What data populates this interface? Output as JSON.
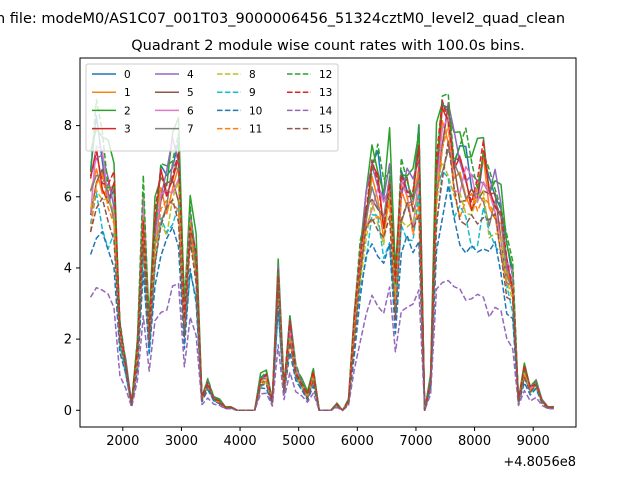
{
  "page": {
    "suptitle": "n file: modeM0/AS1C07_001T03_9000006456_51324cztM0_level2_quad_clean"
  },
  "chart_data": {
    "type": "line",
    "title": "Quadrant 2 module wise count rates with 100.0s bins.",
    "xlabel": "",
    "ylabel": "",
    "x_offset_label": "+4.8056e8",
    "xlim": [
      1270,
      9730
    ],
    "ylim": [
      -0.47,
      9.9
    ],
    "xticks": [
      2000,
      3000,
      4000,
      5000,
      6000,
      7000,
      8000,
      9000
    ],
    "yticks": [
      0,
      2,
      4,
      6,
      8
    ],
    "grid": false,
    "legend": {
      "placement": "top-left",
      "columns": 4
    },
    "x": [
      1450,
      1550,
      1650,
      1750,
      1850,
      1950,
      2050,
      2150,
      2250,
      2350,
      2450,
      2550,
      2650,
      2750,
      2850,
      2950,
      3050,
      3150,
      3250,
      3350,
      3450,
      3550,
      3650,
      3750,
      3850,
      3950,
      4050,
      4150,
      4250,
      4350,
      4450,
      4550,
      4650,
      4750,
      4850,
      4950,
      5050,
      5150,
      5250,
      5350,
      5450,
      5550,
      5650,
      5750,
      5850,
      5950,
      6050,
      6150,
      6250,
      6350,
      6450,
      6550,
      6650,
      6750,
      6850,
      6950,
      7050,
      7150,
      7250,
      7350,
      7450,
      7550,
      7650,
      7750,
      7850,
      7950,
      8050,
      8150,
      8250,
      8350,
      8450,
      8550,
      8650,
      8750,
      8850,
      8950,
      9050,
      9150,
      9250,
      9350
    ],
    "base_profile": [
      0.72,
      0.84,
      0.8,
      0.72,
      0.69,
      0.26,
      0.15,
      0.02,
      0.2,
      0.65,
      0.25,
      0.58,
      0.72,
      0.72,
      0.78,
      0.8,
      0.3,
      0.62,
      0.48,
      0.04,
      0.09,
      0.04,
      0.03,
      0.01,
      0.01,
      0,
      0,
      0,
      0,
      0.1,
      0.11,
      0.03,
      0.44,
      0.07,
      0.27,
      0.13,
      0.09,
      0.05,
      0.12,
      0,
      0,
      0,
      0.02,
      0,
      0.03,
      0.28,
      0.5,
      0.64,
      0.75,
      0.73,
      0.65,
      0.75,
      0.38,
      0.73,
      0.72,
      0.68,
      0.81,
      0,
      0.1,
      0.76,
      0.92,
      0.95,
      0.8,
      0.78,
      0.76,
      0.73,
      0.72,
      0.78,
      0.7,
      0.69,
      0.62,
      0.48,
      0.42,
      0.03,
      0.13,
      0.07,
      0.09,
      0.03,
      0.01,
      0.01
    ],
    "series": [
      {
        "name": "0",
        "color": "#1f77b4",
        "style": "solid",
        "scale": 9.0,
        "phase": 0.0
      },
      {
        "name": "1",
        "color": "#ff7f0e",
        "style": "solid",
        "scale": 8.3,
        "phase": 1.3
      },
      {
        "name": "2",
        "color": "#2ca02c",
        "style": "solid",
        "scale": 9.7,
        "phase": 2.1
      },
      {
        "name": "3",
        "color": "#d62728",
        "style": "solid",
        "scale": 8.6,
        "phase": 0.7
      },
      {
        "name": "4",
        "color": "#9467bd",
        "style": "solid",
        "scale": 8.9,
        "phase": 3.3
      },
      {
        "name": "5",
        "color": "#8c564b",
        "style": "solid",
        "scale": 8.2,
        "phase": 4.1
      },
      {
        "name": "6",
        "color": "#e377c2",
        "style": "solid",
        "scale": 8.4,
        "phase": 5.2
      },
      {
        "name": "7",
        "color": "#7f7f7f",
        "style": "solid",
        "scale": 8.1,
        "phase": 2.8
      },
      {
        "name": "8",
        "color": "#bcbd22",
        "style": "dashed",
        "scale": 7.6,
        "phase": 1.9
      },
      {
        "name": "9",
        "color": "#17becf",
        "style": "dashed",
        "scale": 6.9,
        "phase": 0.4
      },
      {
        "name": "10",
        "color": "#1f77b4",
        "style": "dashed",
        "scale": 6.2,
        "phase": 3.7
      },
      {
        "name": "11",
        "color": "#ff7f0e",
        "style": "dashed",
        "scale": 7.8,
        "phase": 4.6
      },
      {
        "name": "12",
        "color": "#2ca02c",
        "style": "dashed",
        "scale": 9.4,
        "phase": 5.8
      },
      {
        "name": "13",
        "color": "#d62728",
        "style": "dashed",
        "scale": 8.8,
        "phase": 1.1
      },
      {
        "name": "14",
        "color": "#9467bd",
        "style": "dashed",
        "scale": 4.2,
        "phase": 2.4
      },
      {
        "name": "15",
        "color": "#8c564b",
        "style": "dashed",
        "scale": 7.3,
        "phase": 3.9
      }
    ]
  }
}
